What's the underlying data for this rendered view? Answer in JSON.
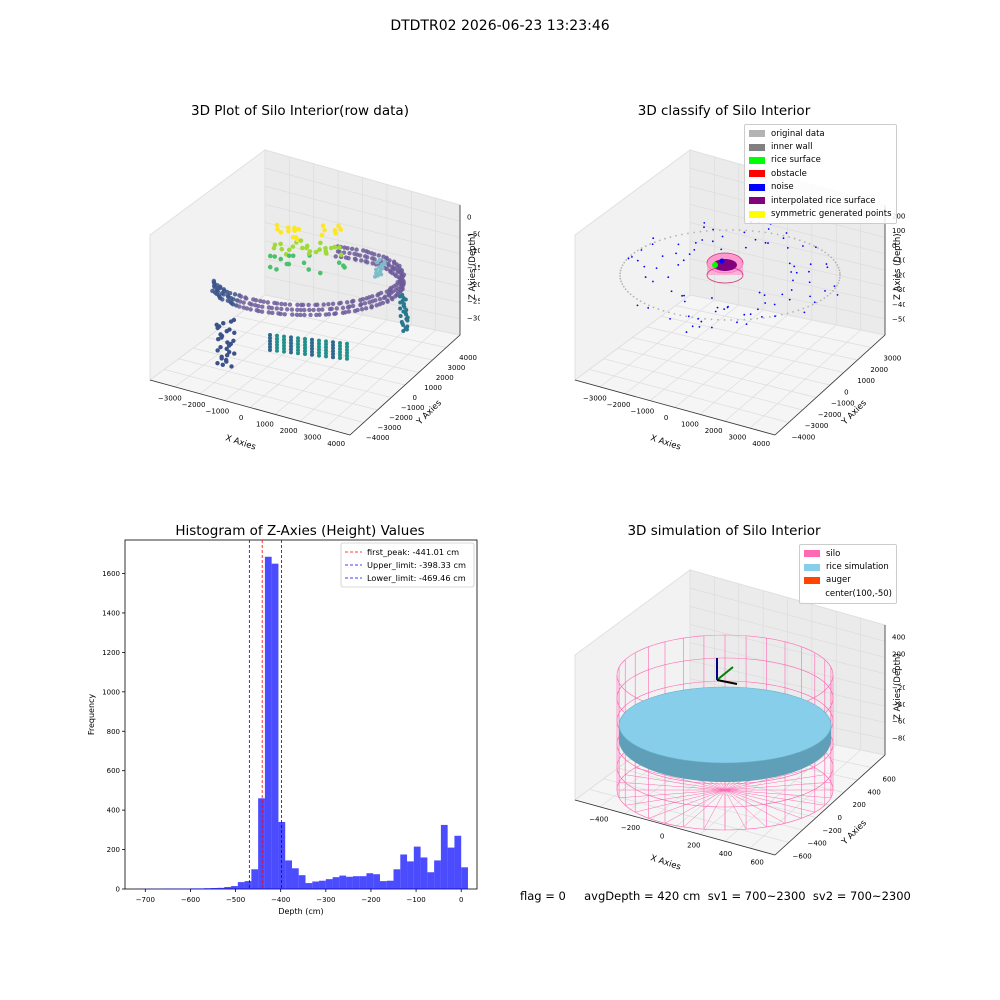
{
  "suptitle": "DTDTR02 2026-06-23 13:23:46",
  "panels": {
    "p1": {
      "title": "3D Plot of Silo Interior(row data)",
      "xlabel": "X Axies",
      "ylabel": "Y Axies",
      "zlabel": "Z Axies (Depth)",
      "xticks": [
        "−3000",
        "−2000",
        "−1000",
        "0",
        "1000",
        "2000",
        "3000",
        "4000"
      ],
      "yticks": [
        "4000",
        "3000",
        "2000",
        "1000",
        "0",
        "−1000",
        "−2000",
        "−3000",
        "−4000"
      ],
      "zticks": [
        "0",
        "−500",
        "−1000",
        "−1500",
        "−2000",
        "−2500",
        "−3000"
      ]
    },
    "p2": {
      "title": "3D classify of Silo Interior",
      "xlabel": "X Axies",
      "ylabel": "Y Axies",
      "zlabel": "Z Axies (Depth)",
      "xticks": [
        "−3000",
        "−2000",
        "−1000",
        "0",
        "1000",
        "2000",
        "3000",
        "4000"
      ],
      "yticks": [
        "3000",
        "2000",
        "1000",
        "0",
        "−1000",
        "−2000",
        "−3000",
        "−4000"
      ],
      "zticks": [
        "2000",
        "1000",
        "0",
        "−1000",
        "−2000",
        "−3000",
        "−4000",
        "−5000"
      ]
    },
    "p4": {
      "title": "3D simulation of Silo Interior",
      "xlabel": "X Axies",
      "ylabel": "Y Axies",
      "zlabel": "Z Axies (Depth)",
      "xticks": [
        "−400",
        "−200",
        "0",
        "200",
        "400",
        "600"
      ],
      "yticks": [
        "600",
        "400",
        "200",
        "0",
        "−200",
        "−400",
        "−600"
      ],
      "zticks": [
        "400",
        "200",
        "0",
        "−200",
        "−400",
        "−600",
        "−800"
      ]
    }
  },
  "legend2": [
    {
      "label": "original data",
      "color": "#b3b3b3"
    },
    {
      "label": "inner wall",
      "color": "#808080"
    },
    {
      "label": "rice surface",
      "color": "#00ff00"
    },
    {
      "label": "obstacle",
      "color": "#ff0000"
    },
    {
      "label": "noise",
      "color": "#0000ff"
    },
    {
      "label": "interpolated rice surface",
      "color": "#800080"
    },
    {
      "label": "symmetric generated points",
      "color": "#ffff00"
    }
  ],
  "legend4": [
    {
      "label": "silo",
      "color": "#ff69b4"
    },
    {
      "label": "rice simulation",
      "color": "#87ceeb"
    },
    {
      "label": "auger",
      "color": "#ff4500"
    },
    {
      "label": "center(100,-50)",
      "color": ""
    }
  ],
  "footer": "flag = 0     avgDepth = 420 cm  sv1 = 700~2300  sv2 = 700~2300",
  "chart_data": [
    {
      "type": "histogram",
      "title": "Histogram of Z-Axies (Height) Values",
      "xlabel": "Depth (cm)",
      "ylabel": "Frequency",
      "xlim": [
        -745,
        35
      ],
      "ylim": [
        0,
        1770
      ],
      "xticks": [
        -700,
        -600,
        -500,
        -400,
        -300,
        -200,
        -100,
        0
      ],
      "yticks": [
        0,
        200,
        400,
        600,
        800,
        1000,
        1200,
        1400,
        1600
      ],
      "bin_width": 15,
      "bins": [
        {
          "x0": -720,
          "v": 1
        },
        {
          "x0": -705,
          "v": 1
        },
        {
          "x0": -690,
          "v": 1
        },
        {
          "x0": -675,
          "v": 1
        },
        {
          "x0": -660,
          "v": 2
        },
        {
          "x0": -645,
          "v": 2
        },
        {
          "x0": -630,
          "v": 2
        },
        {
          "x0": -615,
          "v": 2
        },
        {
          "x0": -600,
          "v": 3
        },
        {
          "x0": -585,
          "v": 3
        },
        {
          "x0": -570,
          "v": 4
        },
        {
          "x0": -555,
          "v": 5
        },
        {
          "x0": -540,
          "v": 6
        },
        {
          "x0": -525,
          "v": 10
        },
        {
          "x0": -510,
          "v": 15
        },
        {
          "x0": -495,
          "v": 35
        },
        {
          "x0": -480,
          "v": 40
        },
        {
          "x0": -465,
          "v": 100
        },
        {
          "x0": -450,
          "v": 460
        },
        {
          "x0": -435,
          "v": 1685
        },
        {
          "x0": -420,
          "v": 1650
        },
        {
          "x0": -405,
          "v": 340
        },
        {
          "x0": -390,
          "v": 145
        },
        {
          "x0": -375,
          "v": 105
        },
        {
          "x0": -360,
          "v": 70
        },
        {
          "x0": -345,
          "v": 30
        },
        {
          "x0": -330,
          "v": 38
        },
        {
          "x0": -315,
          "v": 42
        },
        {
          "x0": -300,
          "v": 50
        },
        {
          "x0": -285,
          "v": 60
        },
        {
          "x0": -270,
          "v": 68
        },
        {
          "x0": -255,
          "v": 62
        },
        {
          "x0": -240,
          "v": 65
        },
        {
          "x0": -225,
          "v": 65
        },
        {
          "x0": -210,
          "v": 80
        },
        {
          "x0": -195,
          "v": 75
        },
        {
          "x0": -180,
          "v": 40
        },
        {
          "x0": -165,
          "v": 42
        },
        {
          "x0": -150,
          "v": 100
        },
        {
          "x0": -135,
          "v": 175
        },
        {
          "x0": -120,
          "v": 140
        },
        {
          "x0": -105,
          "v": 215
        },
        {
          "x0": -90,
          "v": 160
        },
        {
          "x0": -75,
          "v": 85
        },
        {
          "x0": -60,
          "v": 145
        },
        {
          "x0": -45,
          "v": 325
        },
        {
          "x0": -30,
          "v": 210
        },
        {
          "x0": -15,
          "v": 270
        },
        {
          "x0": 0,
          "v": 110
        }
      ],
      "bar_color": "#0000ff",
      "vlines": [
        {
          "label": "first_peak: -441.01 cm",
          "x": -441.01,
          "color": "#ff0000"
        },
        {
          "label": "Upper_limit: -398.33 cm",
          "x": -398.33,
          "color": "#0000ff"
        },
        {
          "label": "Lower_limit: -469.46 cm",
          "x": -469.46,
          "color": "#0000ff"
        }
      ],
      "legend_position": "top-right"
    }
  ]
}
